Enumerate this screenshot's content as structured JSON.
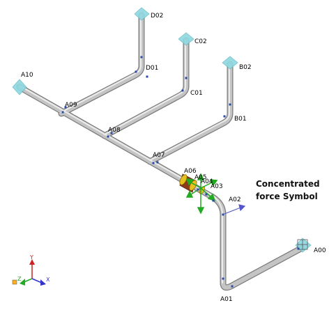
{
  "nodes": {
    "D02": "D02",
    "D01": "D01",
    "C02": "C02",
    "C01": "C01",
    "B02": "B02",
    "B01": "B01",
    "A10": "A10",
    "A09": "A09",
    "A08": "A08",
    "A07": "A07",
    "A06": "A06",
    "A05": "A05",
    "A04": "A04",
    "A03": "A03",
    "A02": "A02",
    "A01": "A01",
    "A00": "A00"
  },
  "annotation": {
    "line1": "Concentrated",
    "line2": "force Symbol"
  },
  "axes": {
    "x": "X",
    "y": "Y",
    "z": "Z"
  },
  "colors": {
    "pipe": "#b9b9b9",
    "pipe_dark": "#8a8a8a",
    "anchor": "#8fd8e0",
    "node_dot": "#2a4aa8",
    "valve": "#8b3a1a",
    "valve_ring": "#e8c020",
    "force": "#22aa22",
    "force_vector": "#5555cc",
    "axis_x": "#3333cc",
    "axis_y": "#cc2222",
    "axis_z": "#22aa22"
  }
}
